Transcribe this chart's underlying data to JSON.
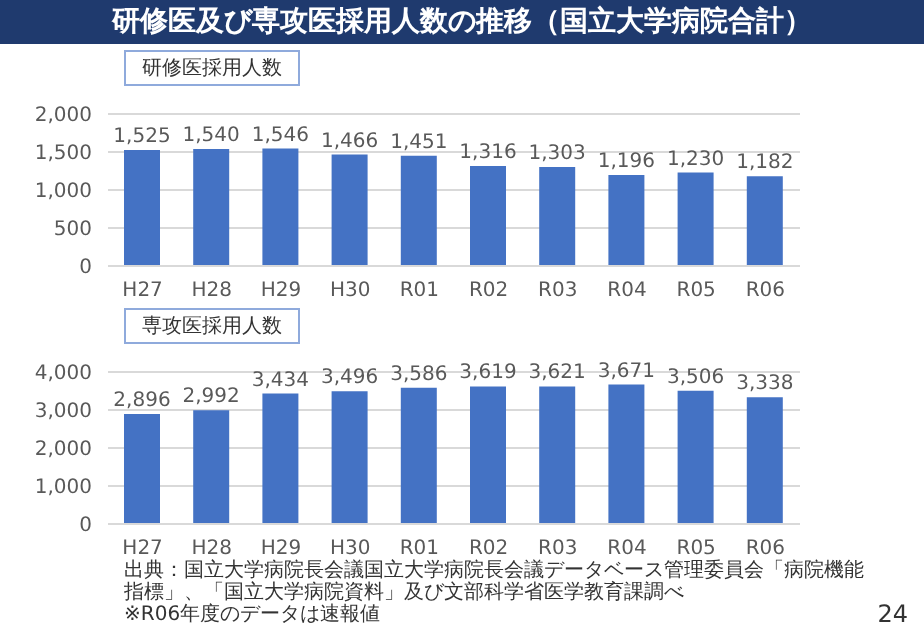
{
  "chart_data": [
    {
      "type": "bar",
      "title": "研修医及び専攻医採用人数の推移（国立大学病院合計）",
      "subtitle": "研修医採用人数",
      "categories": [
        "H27",
        "H28",
        "H29",
        "H30",
        "R01",
        "R02",
        "R03",
        "R04",
        "R05",
        "R06"
      ],
      "values": [
        1525,
        1540,
        1546,
        1466,
        1451,
        1316,
        1303,
        1196,
        1230,
        1182
      ],
      "value_labels": [
        "1,525",
        "1,540",
        "1,546",
        "1,466",
        "1,451",
        "1,316",
        "1,303",
        "1,196",
        "1,230",
        "1,182"
      ],
      "color": "#4472c4",
      "ylim": [
        0,
        2000
      ],
      "yticks": [
        {
          "value": 0,
          "label": "0"
        },
        {
          "value": 500,
          "label": "500"
        },
        {
          "value": 1000,
          "label": "1,000"
        },
        {
          "value": 1500,
          "label": "1,500"
        },
        {
          "value": 2000,
          "label": "2,000"
        }
      ],
      "grid": "y"
    },
    {
      "type": "bar",
      "subtitle": "専攻医採用人数",
      "categories": [
        "H27",
        "H28",
        "H29",
        "H30",
        "R01",
        "R02",
        "R03",
        "R04",
        "R05",
        "R06"
      ],
      "values": [
        2896,
        2992,
        3434,
        3496,
        3586,
        3619,
        3621,
        3671,
        3506,
        3338
      ],
      "value_labels": [
        "2,896",
        "2,992",
        "3,434",
        "3,496",
        "3,586",
        "3,619",
        "3,621",
        "3,671",
        "3,506",
        "3,338"
      ],
      "color": "#4472c4",
      "ylim": [
        0,
        4000
      ],
      "yticks": [
        {
          "value": 0,
          "label": "0"
        },
        {
          "value": 1000,
          "label": "1,000"
        },
        {
          "value": 2000,
          "label": "2,000"
        },
        {
          "value": 3000,
          "label": "3,000"
        },
        {
          "value": 4000,
          "label": "4,000"
        }
      ],
      "grid": "y",
      "annotations": [
        "出典：国立大学病院長会議国立大学病院長会議データベース管理委員会「病院機能指標」、「国立大学病院資料」及び文部科学省医学教育課調べ",
        "※R06年度のデータは速報値",
        "24"
      ]
    }
  ]
}
